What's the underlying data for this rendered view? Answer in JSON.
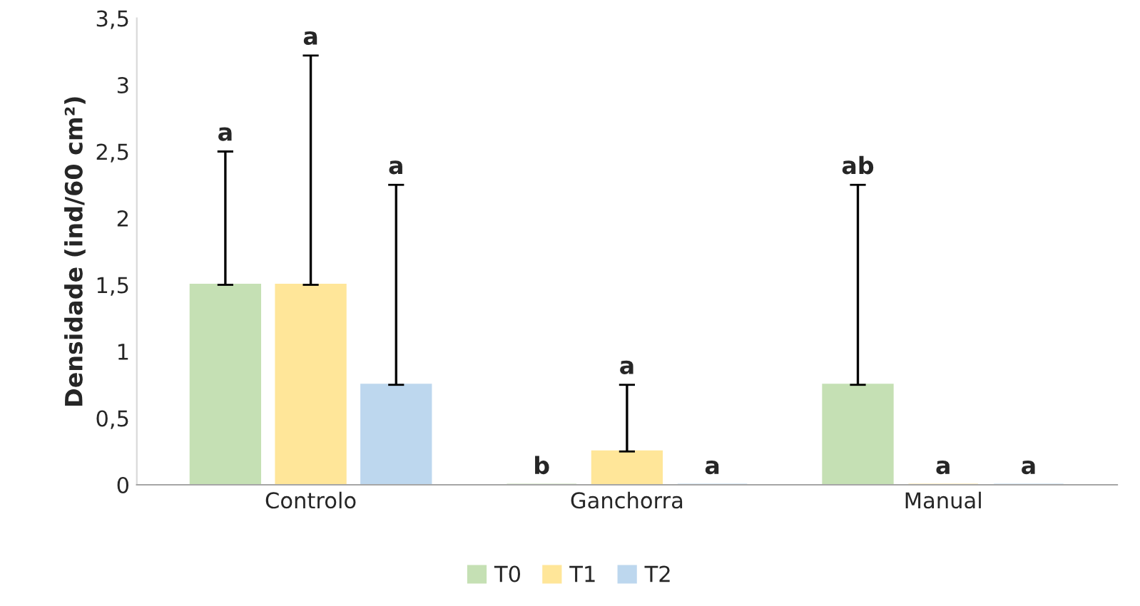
{
  "chart_data": {
    "type": "bar",
    "ylabel": "Densidade (ind/60 cm²)",
    "categories": [
      "Controlo",
      "Ganchorra",
      "Manual"
    ],
    "series": [
      {
        "name": "T0",
        "color": "#c5e0b4",
        "values": [
          1.5,
          0,
          0.75
        ],
        "errors": [
          [
            1.5,
            2.5
          ],
          null,
          [
            0.75,
            2.25
          ]
        ]
      },
      {
        "name": "T1",
        "color": "#ffe699",
        "values": [
          1.5,
          0.25,
          0
        ],
        "errors": [
          [
            1.5,
            3.22
          ],
          [
            0.25,
            0.75
          ],
          null
        ]
      },
      {
        "name": "T2",
        "color": "#bdd7ee",
        "values": [
          0.75,
          0,
          0
        ],
        "errors": [
          [
            0.75,
            2.25
          ],
          null,
          null
        ]
      }
    ],
    "ylim": [
      0,
      3.5
    ],
    "yticks": [
      0,
      {
        "value": 0.5,
        "label": "0,5"
      },
      1,
      {
        "value": 1.5,
        "label": "1,5"
      },
      2,
      {
        "value": 2.5,
        "label": "2,5"
      },
      3,
      {
        "value": 3.5,
        "label": "3,5"
      }
    ],
    "annotations": [
      "a",
      "a",
      "a",
      "b",
      "a",
      "a",
      "ab",
      "a",
      "a"
    ],
    "grid": false,
    "legend": "bottom"
  }
}
